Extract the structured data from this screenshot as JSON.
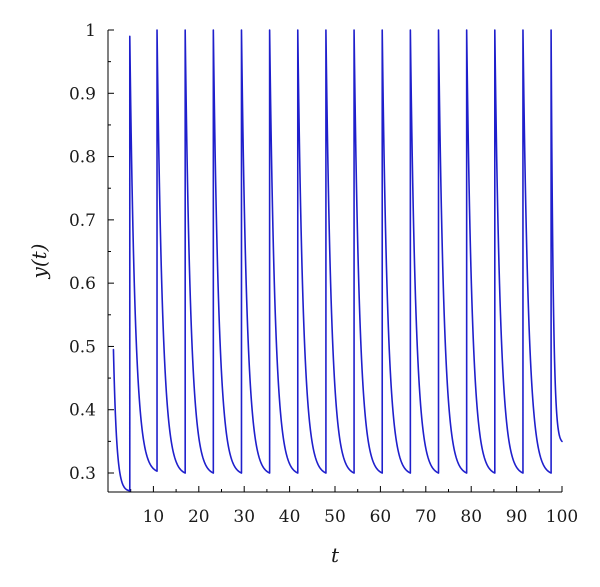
{
  "chart_data": {
    "type": "line",
    "title": "",
    "xlabel": "t",
    "ylabel": "y(t)",
    "xlim": [
      0,
      100
    ],
    "ylim": [
      0.27,
      1.0
    ],
    "grid": false,
    "x_ticks": [
      10,
      20,
      30,
      40,
      50,
      60,
      70,
      80,
      90,
      100
    ],
    "x_tick_labels": [
      "10",
      "20",
      "30",
      "40",
      "50",
      "60",
      "70",
      "80",
      "90",
      "100"
    ],
    "y_ticks": [
      0.3,
      0.4,
      0.5,
      0.6,
      0.7,
      0.8,
      0.9,
      1.0
    ],
    "y_tick_labels": [
      "0.3",
      "0.4",
      "0.5",
      "0.6",
      "0.7",
      "0.8",
      "0.9",
      "1"
    ],
    "series": [
      {
        "color": "#1f1fcc",
        "description": "pulsed decay: initial value then repeated instantaneous rise to ~1 followed by decay to ~0.3",
        "segments": [
          {
            "t_start": 1.2,
            "t_end": 4.8,
            "y_start": 0.495,
            "y_end": 0.272
          },
          {
            "t_start": 4.8,
            "t_end": 10.8,
            "y_start": 0.99,
            "y_end": 0.303
          },
          {
            "t_start": 10.8,
            "t_end": 17.0,
            "y_start": 1.0,
            "y_end": 0.3
          },
          {
            "t_start": 17.0,
            "t_end": 23.2,
            "y_start": 1.0,
            "y_end": 0.3
          },
          {
            "t_start": 23.2,
            "t_end": 29.4,
            "y_start": 1.0,
            "y_end": 0.3
          },
          {
            "t_start": 29.4,
            "t_end": 35.6,
            "y_start": 1.0,
            "y_end": 0.3
          },
          {
            "t_start": 35.6,
            "t_end": 41.8,
            "y_start": 1.0,
            "y_end": 0.3
          },
          {
            "t_start": 41.8,
            "t_end": 48.0,
            "y_start": 1.0,
            "y_end": 0.3
          },
          {
            "t_start": 48.0,
            "t_end": 54.2,
            "y_start": 1.0,
            "y_end": 0.3
          },
          {
            "t_start": 54.2,
            "t_end": 60.4,
            "y_start": 1.0,
            "y_end": 0.3
          },
          {
            "t_start": 60.4,
            "t_end": 66.6,
            "y_start": 1.0,
            "y_end": 0.3
          },
          {
            "t_start": 66.6,
            "t_end": 72.8,
            "y_start": 1.0,
            "y_end": 0.3
          },
          {
            "t_start": 72.8,
            "t_end": 79.0,
            "y_start": 1.0,
            "y_end": 0.3
          },
          {
            "t_start": 79.0,
            "t_end": 85.2,
            "y_start": 1.0,
            "y_end": 0.3
          },
          {
            "t_start": 85.2,
            "t_end": 91.4,
            "y_start": 1.0,
            "y_end": 0.3
          },
          {
            "t_start": 91.4,
            "t_end": 97.6,
            "y_start": 1.0,
            "y_end": 0.3
          },
          {
            "t_start": 97.6,
            "t_end": 100.0,
            "y_start": 1.0,
            "y_end": 0.35
          }
        ]
      }
    ]
  }
}
